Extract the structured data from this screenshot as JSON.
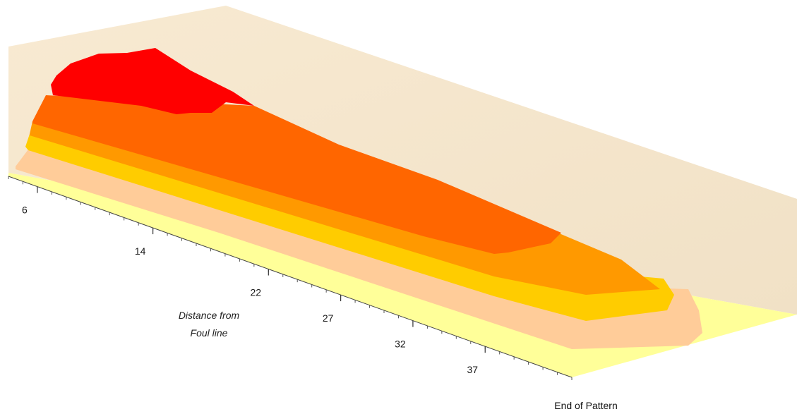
{
  "chart_data": {
    "type": "area",
    "title": "",
    "xlabel_lines": [
      "Distance from",
      "Foul line"
    ],
    "end_label": "End of Pattern",
    "ticks": [
      "6",
      "14",
      "22",
      "27",
      "32",
      "37"
    ],
    "tick_positions": [
      6,
      14,
      22,
      27,
      32,
      37
    ],
    "xlim": [
      4,
      43
    ],
    "grid": false,
    "legend": "none",
    "layers": [
      {
        "color": "#FFFF99"
      },
      {
        "color": "#FFCC99"
      },
      {
        "color": "#FFCC00"
      },
      {
        "color": "#FF9900"
      },
      {
        "color": "#FF6600"
      },
      {
        "color": "#FF0000"
      }
    ],
    "colors": {
      "backwall": "#F5E6CC",
      "floor": "#FFFF99"
    }
  }
}
